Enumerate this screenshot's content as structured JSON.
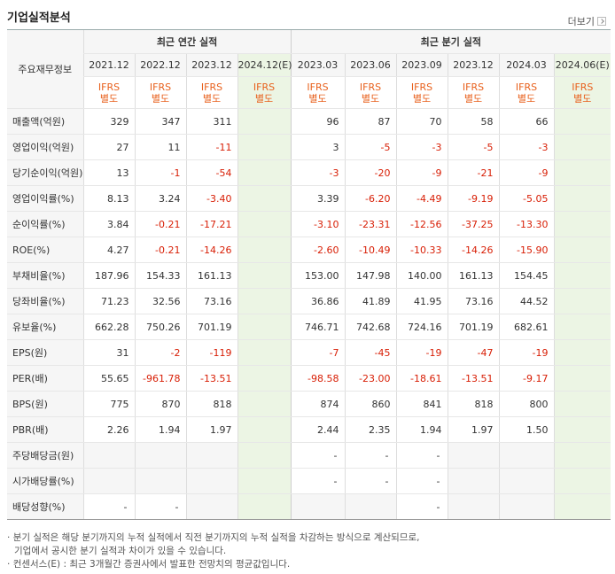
{
  "header": {
    "title": "기업실적분석",
    "more": "더보기"
  },
  "table": {
    "row_header": "주요재무정보",
    "groups": {
      "annual": "최근 연간 실적",
      "quarter": "최근 분기 실적"
    },
    "annual_periods": [
      "2021.12",
      "2022.12",
      "2023.12",
      "2024.12(E)"
    ],
    "quarter_periods": [
      "2023.03",
      "2023.06",
      "2023.09",
      "2023.12",
      "2024.03",
      "2024.06(E)"
    ],
    "ifrs": [
      "IFRS",
      "별도"
    ],
    "rows": [
      {
        "label": "매출액(억원)",
        "values": [
          "329",
          "347",
          "311",
          "",
          "96",
          "87",
          "70",
          "58",
          "66",
          ""
        ]
      },
      {
        "label": "영업이익(억원)",
        "values": [
          "27",
          "11",
          "-11",
          "",
          "3",
          "-5",
          "-3",
          "-5",
          "-3",
          ""
        ]
      },
      {
        "label": "당기순이익(억원)",
        "values": [
          "13",
          "-1",
          "-54",
          "",
          "-3",
          "-20",
          "-9",
          "-21",
          "-9",
          ""
        ]
      },
      {
        "label": "영업이익률(%)",
        "values": [
          "8.13",
          "3.24",
          "-3.40",
          "",
          "3.39",
          "-6.20",
          "-4.49",
          "-9.19",
          "-5.05",
          ""
        ]
      },
      {
        "label": "순이익률(%)",
        "values": [
          "3.84",
          "-0.21",
          "-17.21",
          "",
          "-3.10",
          "-23.31",
          "-12.56",
          "-37.25",
          "-13.30",
          ""
        ]
      },
      {
        "label": "ROE(%)",
        "values": [
          "4.27",
          "-0.21",
          "-14.26",
          "",
          "-2.60",
          "-10.49",
          "-10.33",
          "-14.26",
          "-15.90",
          ""
        ]
      },
      {
        "label": "부채비율(%)",
        "values": [
          "187.96",
          "154.33",
          "161.13",
          "",
          "153.00",
          "147.98",
          "140.00",
          "161.13",
          "154.45",
          ""
        ]
      },
      {
        "label": "당좌비율(%)",
        "values": [
          "71.23",
          "32.56",
          "73.16",
          "",
          "36.86",
          "41.89",
          "41.95",
          "73.16",
          "44.52",
          ""
        ]
      },
      {
        "label": "유보율(%)",
        "values": [
          "662.28",
          "750.26",
          "701.19",
          "",
          "746.71",
          "742.68",
          "724.16",
          "701.19",
          "682.61",
          ""
        ]
      },
      {
        "label": "EPS(원)",
        "values": [
          "31",
          "-2",
          "-119",
          "",
          "-7",
          "-45",
          "-19",
          "-47",
          "-19",
          ""
        ]
      },
      {
        "label": "PER(배)",
        "values": [
          "55.65",
          "-961.78",
          "-13.51",
          "",
          "-98.58",
          "-23.00",
          "-18.61",
          "-13.51",
          "-9.17",
          ""
        ]
      },
      {
        "label": "BPS(원)",
        "values": [
          "775",
          "870",
          "818",
          "",
          "874",
          "860",
          "841",
          "818",
          "800",
          ""
        ]
      },
      {
        "label": "PBR(배)",
        "values": [
          "2.26",
          "1.94",
          "1.97",
          "",
          "2.44",
          "2.35",
          "1.94",
          "1.97",
          "1.50",
          ""
        ]
      },
      {
        "label": "주당배당금(원)",
        "values": [
          "",
          "",
          "",
          "",
          "-",
          "-",
          "-",
          "",
          "",
          ""
        ]
      },
      {
        "label": "시가배당률(%)",
        "values": [
          "",
          "",
          "",
          "",
          "-",
          "-",
          "-",
          "",
          "",
          ""
        ]
      },
      {
        "label": "배당성향(%)",
        "values": [
          "-",
          "-",
          "",
          "",
          "",
          "",
          "-",
          "",
          "",
          ""
        ]
      }
    ]
  },
  "notes": [
    "분기 실적은 해당 분기까지의 누적 실적에서 직전 분기까지의 누적 실적을 차감하는 방식으로 계산되므로,",
    "기업에서 공시한 분기 실적과 차이가 있을 수 있습니다.",
    "컨센서스(E) : 최근 3개월간 증권사에서 발표한 전망치의 평균값입니다."
  ]
}
